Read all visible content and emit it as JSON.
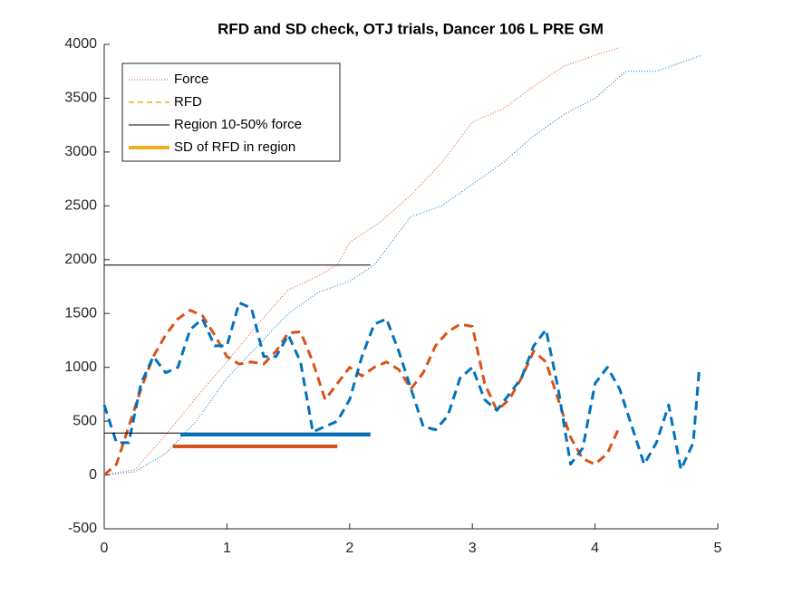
{
  "chart_data": {
    "type": "line",
    "title": "RFD and SD check, OTJ trials, Dancer 106 L PRE GM",
    "xlim": [
      0,
      5
    ],
    "xticks": [
      0,
      1,
      2,
      3,
      4,
      5
    ],
    "ylim": [
      -500,
      4000
    ],
    "yticks": [
      -500,
      0,
      500,
      1000,
      1500,
      2000,
      2500,
      3000,
      3500,
      4000
    ],
    "legend_position": "upper-left",
    "legend": [
      {
        "label": "Force",
        "color": "#D95319",
        "style": "dotted"
      },
      {
        "label": "RFD",
        "color": "#EDB120",
        "style": "dashed"
      },
      {
        "label": "Region 10-50% force",
        "color": "#000000",
        "style": "solid"
      },
      {
        "label": "SD of RFD in region",
        "color": "#EDB120",
        "style": "thick"
      }
    ],
    "series": [
      {
        "color": "#D95319",
        "style": "dotted",
        "x": [
          0,
          0.25,
          0.5,
          0.75,
          1,
          1.25,
          1.5,
          1.75,
          1.9,
          2,
          2.25,
          2.5,
          2.75,
          3,
          3.25,
          3.5,
          3.75,
          4,
          4.2
        ],
        "values": [
          0,
          50,
          370,
          720,
          1050,
          1400,
          1720,
          1850,
          1955,
          2160,
          2350,
          2600,
          2900,
          3280,
          3400,
          3610,
          3800,
          3900,
          3970
        ]
      },
      {
        "color": "#0072BD",
        "style": "dotted",
        "x": [
          0,
          0.25,
          0.5,
          0.75,
          1,
          1.25,
          1.5,
          1.75,
          2,
          2.2,
          2.5,
          2.75,
          3,
          3.25,
          3.5,
          3.75,
          4,
          4.25,
          4.5,
          4.75,
          4.87
        ],
        "values": [
          0,
          30,
          200,
          500,
          900,
          1200,
          1500,
          1700,
          1800,
          1950,
          2400,
          2500,
          2700,
          2900,
          3150,
          3350,
          3500,
          3750,
          3750,
          3850,
          3900
        ]
      },
      {
        "color": "#D95319",
        "style": "dashed",
        "x": [
          0,
          0.1,
          0.2,
          0.3,
          0.4,
          0.5,
          0.6,
          0.7,
          0.8,
          0.9,
          1,
          1.1,
          1.2,
          1.3,
          1.4,
          1.5,
          1.6,
          1.7,
          1.8,
          1.9,
          2,
          2.1,
          2.2,
          2.3,
          2.4,
          2.5,
          2.6,
          2.7,
          2.8,
          2.9,
          3,
          3.1,
          3.2,
          3.3,
          3.4,
          3.5,
          3.6,
          3.7,
          3.8,
          3.9,
          4,
          4.1,
          4.2
        ],
        "values": [
          0,
          100,
          450,
          800,
          1100,
          1300,
          1450,
          1530,
          1480,
          1300,
          1100,
          1030,
          1050,
          1030,
          1150,
          1320,
          1330,
          1050,
          700,
          850,
          1000,
          920,
          1000,
          1050,
          980,
          800,
          950,
          1200,
          1330,
          1400,
          1380,
          850,
          600,
          700,
          900,
          1150,
          1050,
          700,
          350,
          150,
          100,
          200,
          450
        ]
      },
      {
        "color": "#0072BD",
        "style": "dashed",
        "x": [
          0,
          0.1,
          0.2,
          0.3,
          0.4,
          0.5,
          0.6,
          0.7,
          0.8,
          0.9,
          1,
          1.1,
          1.2,
          1.3,
          1.4,
          1.5,
          1.6,
          1.7,
          1.8,
          1.9,
          2,
          2.1,
          2.2,
          2.3,
          2.4,
          2.5,
          2.6,
          2.7,
          2.8,
          2.9,
          3,
          3.1,
          3.2,
          3.3,
          3.4,
          3.5,
          3.6,
          3.7,
          3.8,
          3.9,
          4,
          4.1,
          4.2,
          4.3,
          4.4,
          4.5,
          4.6,
          4.7,
          4.8,
          4.85
        ],
        "values": [
          650,
          300,
          300,
          850,
          1100,
          950,
          1000,
          1350,
          1450,
          1200,
          1200,
          1600,
          1550,
          1100,
          1100,
          1300,
          1050,
          400,
          450,
          500,
          700,
          1100,
          1400,
          1450,
          1150,
          800,
          450,
          420,
          550,
          900,
          1000,
          700,
          600,
          750,
          900,
          1200,
          1350,
          800,
          100,
          250,
          850,
          1000,
          800,
          450,
          100,
          300,
          650,
          50,
          300,
          1000
        ]
      },
      {
        "color": "#000000",
        "style": "solid",
        "x": [
          0,
          2.17
        ],
        "values": [
          1950,
          1950
        ]
      },
      {
        "color": "#000000",
        "style": "solid",
        "x": [
          0,
          2.17
        ],
        "values": [
          390,
          390
        ]
      },
      {
        "color": "#0072BD",
        "style": "thick",
        "x": [
          0.62,
          2.17
        ],
        "values": [
          375,
          375
        ]
      },
      {
        "color": "#D95319",
        "style": "thick",
        "x": [
          0.56,
          1.9
        ],
        "values": [
          265,
          265
        ]
      }
    ]
  }
}
